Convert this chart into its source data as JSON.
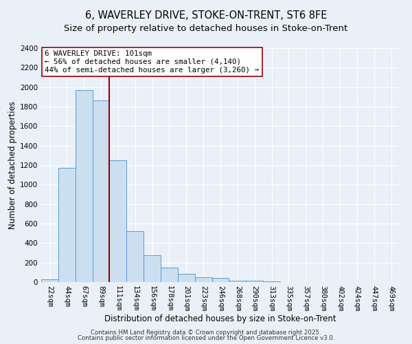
{
  "title": "6, WAVERLEY DRIVE, STOKE-ON-TRENT, ST6 8FE",
  "subtitle": "Size of property relative to detached houses in Stoke-on-Trent",
  "xlabel": "Distribution of detached houses by size in Stoke-on-Trent",
  "ylabel": "Number of detached properties",
  "bar_labels": [
    "22sqm",
    "44sqm",
    "67sqm",
    "89sqm",
    "111sqm",
    "134sqm",
    "156sqm",
    "178sqm",
    "201sqm",
    "223sqm",
    "246sqm",
    "268sqm",
    "290sqm",
    "313sqm",
    "335sqm",
    "357sqm",
    "380sqm",
    "402sqm",
    "424sqm",
    "447sqm",
    "469sqm"
  ],
  "bar_heights": [
    30,
    1170,
    1970,
    1860,
    1250,
    520,
    275,
    150,
    85,
    50,
    40,
    12,
    12,
    5,
    0,
    0,
    0,
    0,
    0,
    0,
    0
  ],
  "bar_color": "#ccdff0",
  "bar_edge_color": "#5b9bd5",
  "ylim": [
    0,
    2400
  ],
  "yticks": [
    0,
    200,
    400,
    600,
    800,
    1000,
    1200,
    1400,
    1600,
    1800,
    2000,
    2200,
    2400
  ],
  "vline_color": "#9b0000",
  "annotation_title": "6 WAVERLEY DRIVE: 101sqm",
  "annotation_line1": "← 56% of detached houses are smaller (4,140)",
  "annotation_line2": "44% of semi-detached houses are larger (3,260) →",
  "bg_color": "#eaf0f8",
  "plot_bg_color": "#eaf0f8",
  "grid_color": "#ffffff",
  "footnote1": "Contains HM Land Registry data © Crown copyright and database right 2025.",
  "footnote2": "Contains public sector information licensed under the Open Government Licence v3.0.",
  "title_fontsize": 10.5,
  "subtitle_fontsize": 9.5,
  "xlabel_fontsize": 8.5,
  "ylabel_fontsize": 8.5,
  "tick_fontsize": 7.5,
  "annot_fontsize": 7.8
}
